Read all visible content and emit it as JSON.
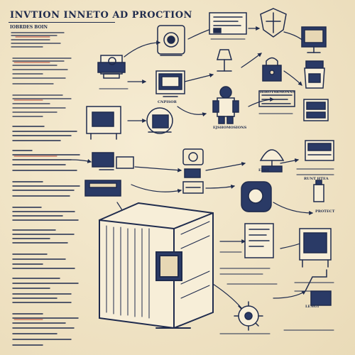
{
  "header": {
    "title": "INVTION INNETO AD PROCTION",
    "subtitle": "IOBRDES BOIN"
  },
  "labels": {
    "gpu_caption": "CNPISOR",
    "mid_caption": "HIROTSRMONNS",
    "center_caption": "EJSHOMOSIONS",
    "cabinet_caption": "EMIT",
    "right_caption": "RUNT HTEA",
    "low_right_caption": "PROTECT",
    "bottom_right_caption": "LENGT"
  },
  "colors": {
    "ink": "#1f2b4d",
    "paper": "#efe3c6",
    "accent_red": "#b7412e"
  },
  "icons": [
    "printer-icon",
    "lock-icon",
    "shield-icon",
    "camera-icon",
    "robot-icon",
    "monitor-icon",
    "server-cabinet-icon",
    "gear-icon",
    "document-icon",
    "cpu-icon"
  ]
}
